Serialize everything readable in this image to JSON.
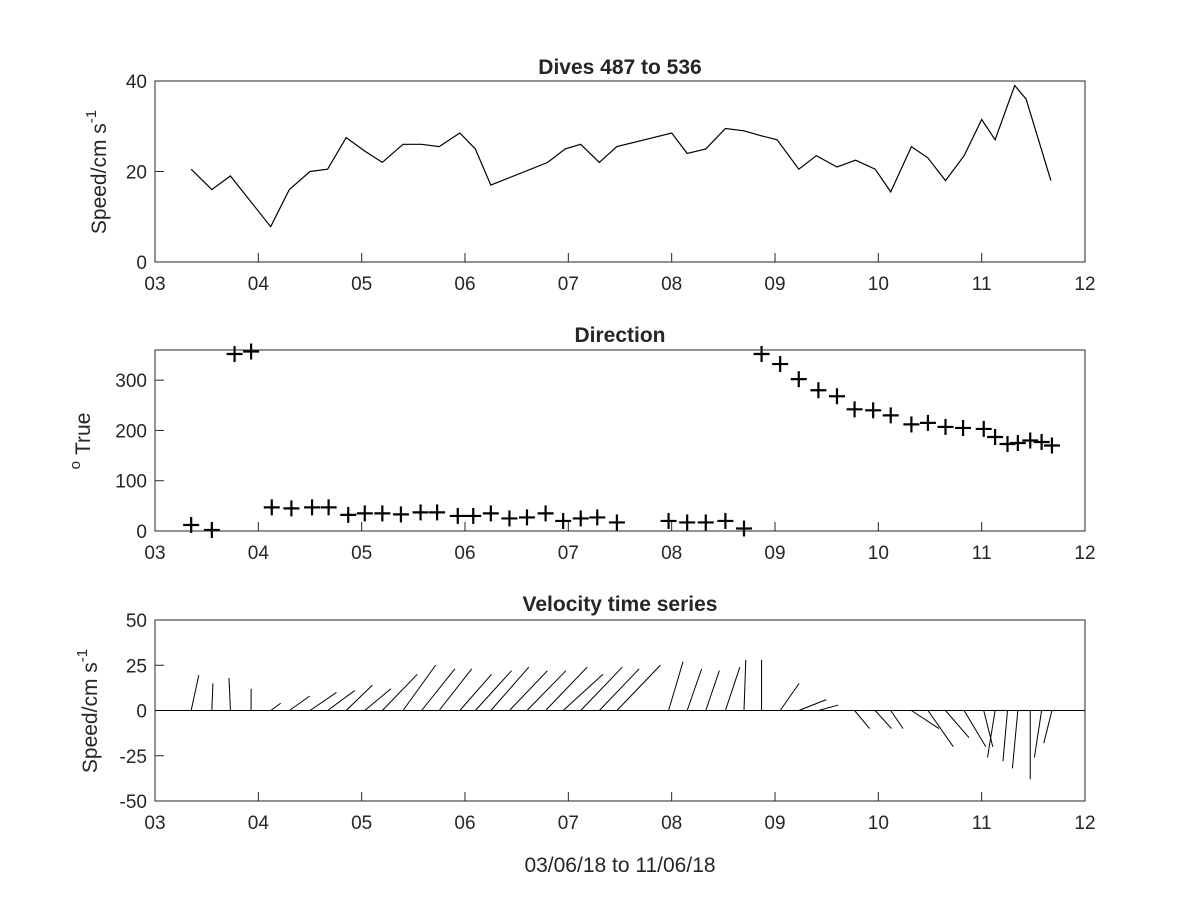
{
  "chart_data": [
    {
      "type": "line",
      "title": "Dives 487 to 536",
      "xlabel": "",
      "ylabel": "Speed/cm s",
      "ylabel_sup": "-1",
      "xlim": [
        3,
        12
      ],
      "ylim": [
        0,
        40
      ],
      "xticks": [
        "03",
        "04",
        "05",
        "06",
        "07",
        "08",
        "09",
        "10",
        "11",
        "12"
      ],
      "yticks": [
        0,
        20,
        40
      ],
      "grid": false,
      "series": [
        {
          "x": [
            3.35,
            3.55,
            3.73,
            4.12,
            4.3,
            4.5,
            4.67,
            4.85,
            5.03,
            5.2,
            5.4,
            5.58,
            5.75,
            5.95,
            6.1,
            6.25,
            6.8,
            6.97,
            7.12,
            7.3,
            7.47,
            8.0,
            8.15,
            8.33,
            8.52,
            8.7,
            8.85,
            9.02,
            9.23,
            9.4,
            9.6,
            9.78,
            9.97,
            10.12,
            10.32,
            10.48,
            10.65,
            10.83,
            11.0,
            11.13,
            11.32,
            11.43,
            11.67
          ],
          "y": [
            20.5,
            16.0,
            19.0,
            7.8,
            16.0,
            20.0,
            20.5,
            27.5,
            24.5,
            22.0,
            26.0,
            26.0,
            25.5,
            28.5,
            25.0,
            17.0,
            22.0,
            25.0,
            26.0,
            22.0,
            25.5,
            28.5,
            24.0,
            25.0,
            29.5,
            29.0,
            28.0,
            27.0,
            20.5,
            23.5,
            21.0,
            22.5,
            20.5,
            15.5,
            25.5,
            23.0,
            18.0,
            23.5,
            31.5,
            27.0,
            39.0,
            36.0,
            18.0
          ]
        }
      ]
    },
    {
      "type": "scatter",
      "title": "Direction",
      "xlabel": "",
      "ylabel": "True",
      "ylabel_sup": "o",
      "xlim": [
        3,
        12
      ],
      "ylim": [
        0,
        360
      ],
      "xticks": [
        "03",
        "04",
        "05",
        "06",
        "07",
        "08",
        "09",
        "10",
        "11",
        "12"
      ],
      "yticks": [
        0,
        100,
        200,
        300
      ],
      "grid": false,
      "marker": "+",
      "series": [
        {
          "x": [
            3.35,
            3.55,
            3.77,
            3.93,
            4.13,
            4.32,
            4.52,
            4.68,
            4.87,
            5.03,
            5.2,
            5.38,
            5.57,
            5.73,
            5.93,
            6.08,
            6.25,
            6.43,
            6.6,
            6.78,
            6.95,
            7.12,
            7.28,
            7.47,
            7.97,
            8.15,
            8.33,
            8.52,
            8.7,
            8.87,
            9.05,
            9.23,
            9.42,
            9.6,
            9.77,
            9.95,
            10.12,
            10.32,
            10.48,
            10.65,
            10.82,
            11.02,
            11.13,
            11.25,
            11.35,
            11.47,
            11.58,
            11.68
          ],
          "y": [
            12,
            2,
            352,
            357,
            47,
            45,
            47,
            47,
            32,
            35,
            35,
            33,
            37,
            37,
            30,
            30,
            35,
            25,
            27,
            35,
            20,
            25,
            27,
            17,
            20,
            17,
            17,
            20,
            5,
            352,
            332,
            302,
            280,
            268,
            242,
            240,
            230,
            212,
            215,
            207,
            205,
            203,
            187,
            173,
            175,
            180,
            177,
            170
          ]
        }
      ]
    },
    {
      "type": "line",
      "subtype": "stick",
      "title": "Velocity time series",
      "xlabel": "03/06/18 to 11/06/18",
      "ylabel": "Speed/cm s",
      "ylabel_sup": "-1",
      "xlim": [
        3,
        12
      ],
      "ylim": [
        -50,
        50
      ],
      "xticks": [
        "03",
        "04",
        "05",
        "06",
        "07",
        "08",
        "09",
        "10",
        "11",
        "12"
      ],
      "yticks": [
        50,
        25,
        0,
        -25,
        -50
      ],
      "grid": false,
      "series": [
        {
          "x": [
            3.35,
            3.55,
            3.73,
            3.93,
            4.12,
            4.3,
            4.5,
            4.67,
            4.85,
            5.03,
            5.2,
            5.4,
            5.58,
            5.75,
            5.95,
            6.1,
            6.25,
            6.43,
            6.6,
            6.78,
            6.95,
            7.12,
            7.3,
            7.47,
            7.97,
            8.15,
            8.33,
            8.52,
            8.7,
            8.87,
            9.05,
            9.23,
            9.42,
            9.6,
            9.77,
            9.97,
            10.12,
            10.32,
            10.48,
            10.65,
            10.83,
            11.02,
            11.13,
            11.25,
            11.35,
            11.47,
            11.58,
            11.68
          ],
          "u": [
            4.2,
            0.6,
            -0.8,
            0,
            5.5,
            11.3,
            14.6,
            15.0,
            14.5,
            14.4,
            19.3,
            18.0,
            18.4,
            18.0,
            17.5,
            20.0,
            21.0,
            21.0,
            21.5,
            23.0,
            22.0,
            23.0,
            22.0,
            24.0,
            8.0,
            8.0,
            7.5,
            8.0,
            1.0,
            0,
            10.5,
            15.2,
            11.0,
            8.5,
            8.3,
            9.0,
            6.8,
            15.2,
            14.0,
            13.0,
            12.0,
            5.0,
            -4.2,
            -2.5,
            -3.0,
            0,
            -4.0,
            -4.5
          ],
          "v": [
            19.5,
            15.0,
            18.0,
            12.0,
            4.0,
            8.0,
            10.0,
            11.0,
            14.0,
            12.0,
            20.0,
            25.0,
            23.0,
            23.0,
            20.0,
            22.0,
            24.0,
            22.0,
            22.0,
            24.0,
            20.0,
            24.0,
            23.0,
            25.0,
            27.0,
            23.0,
            22.0,
            24.0,
            28.0,
            28.0,
            15.0,
            6.0,
            3.0,
            0,
            -10.0,
            -10.0,
            -10.0,
            -10.0,
            -20.0,
            -15.0,
            -20.0,
            -20.0,
            -26.0,
            -28.0,
            -32.0,
            -38.0,
            -26.0,
            -18.0
          ]
        }
      ]
    }
  ]
}
